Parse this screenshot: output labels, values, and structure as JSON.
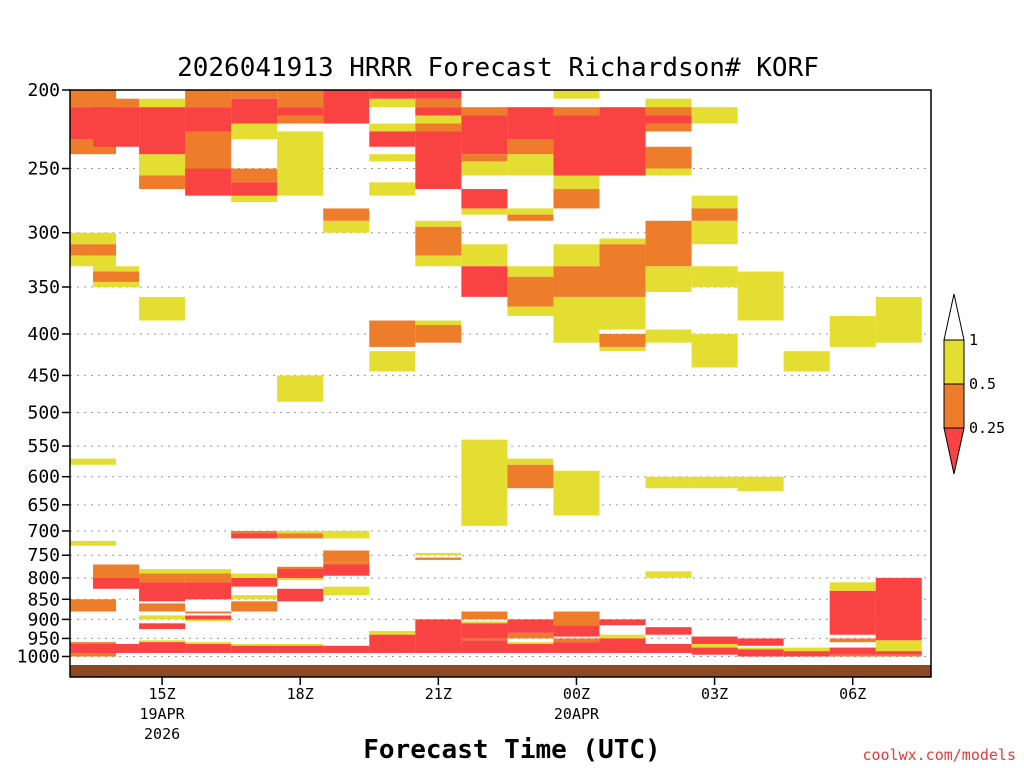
{
  "chart_data": {
    "type": "heatmap",
    "title": "2026041913 HRRR Forecast Richardson# KORF",
    "xlabel": "Forecast Time (UTC)",
    "credit": "coolwx.com/models",
    "y_axis": {
      "ticks": [
        200,
        250,
        300,
        350,
        400,
        450,
        500,
        550,
        600,
        650,
        700,
        750,
        800,
        850,
        900,
        950,
        1000
      ],
      "range": [
        200,
        1060
      ],
      "grid": "dotted"
    },
    "x_axis": {
      "range": [
        13,
        31.7
      ],
      "ticks": [
        {
          "hour": 15,
          "label": "15Z",
          "sub1": "19APR",
          "sub2": "2026"
        },
        {
          "hour": 18,
          "label": "18Z",
          "sub1": "",
          "sub2": ""
        },
        {
          "hour": 21,
          "label": "21Z",
          "sub1": "",
          "sub2": ""
        },
        {
          "hour": 24,
          "label": "00Z",
          "sub1": "20APR",
          "sub2": ""
        },
        {
          "hour": 27,
          "label": "03Z",
          "sub1": "",
          "sub2": ""
        },
        {
          "hour": 30,
          "label": "06Z",
          "sub1": "",
          "sub2": ""
        }
      ]
    },
    "legend": {
      "placement": "right",
      "levels": [
        "1",
        "0.5",
        "0.25"
      ],
      "colors": {
        "yellow": "#e4de32",
        "orange": "#ed7d2b",
        "red": "#f94343",
        "ground": "#8c4a22"
      }
    },
    "cells": [
      {
        "h": 13,
        "c": "y",
        "r": [
          [
            300,
            310
          ],
          [
            320,
            330
          ],
          [
            570,
            580
          ],
          [
            720,
            730
          ]
        ]
      },
      {
        "h": 13,
        "c": "o",
        "r": [
          [
            200,
            210
          ],
          [
            230,
            240
          ],
          [
            310,
            320
          ],
          [
            850,
            880
          ],
          [
            960,
            965
          ],
          [
            990,
            1000
          ]
        ]
      },
      {
        "h": 13,
        "c": "r",
        "r": [
          [
            210,
            230
          ],
          [
            965,
            990
          ]
        ]
      },
      {
        "h": 14,
        "c": "y",
        "r": [
          [
            330,
            335
          ],
          [
            340,
            350
          ],
          [
            980,
            985
          ]
        ]
      },
      {
        "h": 14,
        "c": "o",
        "r": [
          [
            205,
            210
          ],
          [
            335,
            345
          ],
          [
            770,
            800
          ]
        ]
      },
      {
        "h": 14,
        "c": "r",
        "r": [
          [
            210,
            235
          ],
          [
            800,
            825
          ],
          [
            965,
            990
          ]
        ]
      },
      {
        "h": 15,
        "c": "y",
        "r": [
          [
            205,
            210
          ],
          [
            240,
            255
          ],
          [
            360,
            385
          ],
          [
            780,
            790
          ],
          [
            840,
            850
          ],
          [
            890,
            900
          ],
          [
            955,
            960
          ]
        ]
      },
      {
        "h": 15,
        "c": "o",
        "r": [
          [
            255,
            265
          ],
          [
            790,
            810
          ],
          [
            860,
            875
          ],
          [
            875,
            880
          ]
        ]
      },
      {
        "h": 15,
        "c": "r",
        "r": [
          [
            210,
            240
          ],
          [
            810,
            855
          ],
          [
            910,
            925
          ],
          [
            960,
            990
          ]
        ]
      },
      {
        "h": 16,
        "c": "y",
        "r": [
          [
            250,
            260
          ],
          [
            780,
            790
          ],
          [
            900,
            905
          ],
          [
            960,
            965
          ]
        ]
      },
      {
        "h": 16,
        "c": "o",
        "r": [
          [
            200,
            210
          ],
          [
            225,
            250
          ],
          [
            790,
            810
          ],
          [
            880,
            885
          ]
        ]
      },
      {
        "h": 16,
        "c": "r",
        "r": [
          [
            210,
            225
          ],
          [
            250,
            270
          ],
          [
            810,
            850
          ],
          [
            890,
            900
          ],
          [
            965,
            990
          ]
        ]
      },
      {
        "h": 17,
        "c": "y",
        "r": [
          [
            220,
            230
          ],
          [
            270,
            275
          ],
          [
            790,
            800
          ],
          [
            840,
            850
          ],
          [
            965,
            970
          ]
        ]
      },
      {
        "h": 17,
        "c": "o",
        "r": [
          [
            200,
            205
          ],
          [
            250,
            260
          ],
          [
            700,
            705
          ],
          [
            855,
            880
          ]
        ]
      },
      {
        "h": 17,
        "c": "r",
        "r": [
          [
            205,
            220
          ],
          [
            260,
            270
          ],
          [
            705,
            715
          ],
          [
            800,
            820
          ],
          [
            970,
            990
          ]
        ]
      },
      {
        "h": 18,
        "c": "y",
        "r": [
          [
            225,
            270
          ],
          [
            450,
            485
          ],
          [
            700,
            705
          ],
          [
            800,
            805
          ],
          [
            965,
            970
          ]
        ]
      },
      {
        "h": 18,
        "c": "o",
        "r": [
          [
            200,
            210
          ],
          [
            215,
            220
          ],
          [
            705,
            715
          ],
          [
            775,
            785
          ]
        ]
      },
      {
        "h": 18,
        "c": "r",
        "r": [
          [
            210,
            215
          ],
          [
            780,
            800
          ],
          [
            825,
            855
          ],
          [
            970,
            990
          ]
        ]
      },
      {
        "h": 19,
        "c": "y",
        "r": [
          [
            290,
            300
          ],
          [
            700,
            715
          ],
          [
            820,
            840
          ]
        ]
      },
      {
        "h": 19,
        "c": "o",
        "r": [
          [
            280,
            290
          ],
          [
            740,
            765
          ],
          [
            765,
            770
          ]
        ]
      },
      {
        "h": 19,
        "c": "r",
        "r": [
          [
            200,
            220
          ],
          [
            770,
            795
          ],
          [
            970,
            990
          ]
        ]
      },
      {
        "h": 20,
        "c": "y",
        "r": [
          [
            205,
            210
          ],
          [
            220,
            225
          ],
          [
            240,
            245
          ],
          [
            260,
            270
          ],
          [
            420,
            445
          ],
          [
            930,
            940
          ]
        ]
      },
      {
        "h": 20,
        "c": "o",
        "r": [
          [
            385,
            415
          ]
        ]
      },
      {
        "h": 20,
        "c": "r",
        "r": [
          [
            200,
            205
          ],
          [
            225,
            235
          ],
          [
            940,
            990
          ]
        ]
      },
      {
        "h": 21,
        "c": "y",
        "r": [
          [
            215,
            220
          ],
          [
            290,
            295
          ],
          [
            320,
            330
          ],
          [
            385,
            390
          ],
          [
            745,
            750
          ]
        ]
      },
      {
        "h": 21,
        "c": "o",
        "r": [
          [
            205,
            210
          ],
          [
            220,
            225
          ],
          [
            295,
            320
          ],
          [
            390,
            410
          ],
          [
            755,
            760
          ]
        ]
      },
      {
        "h": 21,
        "c": "r",
        "r": [
          [
            200,
            205
          ],
          [
            210,
            215
          ],
          [
            225,
            265
          ],
          [
            900,
            990
          ]
        ]
      },
      {
        "h": 22,
        "c": "y",
        "r": [
          [
            245,
            255
          ],
          [
            280,
            285
          ],
          [
            310,
            330
          ],
          [
            540,
            690
          ],
          [
            905,
            910
          ]
        ]
      },
      {
        "h": 22,
        "c": "o",
        "r": [
          [
            210,
            215
          ],
          [
            240,
            245
          ],
          [
            880,
            900
          ],
          [
            950,
            955
          ]
        ]
      },
      {
        "h": 22,
        "c": "r",
        "r": [
          [
            215,
            240
          ],
          [
            265,
            280
          ],
          [
            330,
            360
          ],
          [
            910,
            950
          ],
          [
            955,
            990
          ]
        ]
      },
      {
        "h": 23,
        "c": "y",
        "r": [
          [
            240,
            255
          ],
          [
            280,
            285
          ],
          [
            330,
            340
          ],
          [
            370,
            380
          ],
          [
            570,
            580
          ],
          [
            960,
            965
          ]
        ]
      },
      {
        "h": 23,
        "c": "o",
        "r": [
          [
            230,
            240
          ],
          [
            285,
            290
          ],
          [
            340,
            370
          ],
          [
            580,
            620
          ],
          [
            935,
            950
          ]
        ]
      },
      {
        "h": 23,
        "c": "r",
        "r": [
          [
            210,
            230
          ],
          [
            900,
            935
          ],
          [
            965,
            990
          ]
        ]
      },
      {
        "h": 24,
        "c": "y",
        "r": [
          [
            200,
            205
          ],
          [
            255,
            270
          ],
          [
            310,
            330
          ],
          [
            360,
            410
          ],
          [
            590,
            670
          ]
        ]
      },
      {
        "h": 24,
        "c": "o",
        "r": [
          [
            210,
            215
          ],
          [
            265,
            280
          ],
          [
            330,
            360
          ],
          [
            880,
            915
          ],
          [
            950,
            960
          ]
        ]
      },
      {
        "h": 24,
        "c": "r",
        "r": [
          [
            215,
            255
          ],
          [
            915,
            945
          ],
          [
            960,
            990
          ]
        ]
      },
      {
        "h": 25,
        "c": "y",
        "r": [
          [
            305,
            310
          ],
          [
            360,
            395
          ],
          [
            415,
            420
          ],
          [
            940,
            950
          ]
        ]
      },
      {
        "h": 25,
        "c": "o",
        "r": [
          [
            310,
            360
          ],
          [
            400,
            415
          ]
        ]
      },
      {
        "h": 25,
        "c": "r",
        "r": [
          [
            210,
            255
          ],
          [
            900,
            915
          ],
          [
            950,
            990
          ]
        ]
      },
      {
        "h": 26,
        "c": "y",
        "r": [
          [
            205,
            210
          ],
          [
            250,
            255
          ],
          [
            330,
            355
          ],
          [
            395,
            410
          ],
          [
            600,
            620
          ],
          [
            785,
            800
          ]
        ]
      },
      {
        "h": 26,
        "c": "o",
        "r": [
          [
            210,
            215
          ],
          [
            220,
            225
          ],
          [
            235,
            250
          ],
          [
            290,
            330
          ]
        ]
      },
      {
        "h": 26,
        "c": "r",
        "r": [
          [
            215,
            220
          ],
          [
            920,
            940
          ],
          [
            965,
            990
          ]
        ]
      },
      {
        "h": 27,
        "c": "y",
        "r": [
          [
            210,
            220
          ],
          [
            270,
            280
          ],
          [
            290,
            310
          ],
          [
            330,
            350
          ],
          [
            400,
            440
          ],
          [
            600,
            620
          ],
          [
            965,
            975
          ]
        ]
      },
      {
        "h": 27,
        "c": "o",
        "r": [
          [
            280,
            290
          ]
        ]
      },
      {
        "h": 27,
        "c": "r",
        "r": [
          [
            945,
            965
          ],
          [
            975,
            995
          ]
        ]
      },
      {
        "h": 28,
        "c": "y",
        "r": [
          [
            335,
            385
          ],
          [
            600,
            625
          ],
          [
            975,
            980
          ]
        ]
      },
      {
        "h": 28,
        "c": "r",
        "r": [
          [
            950,
            970
          ],
          [
            980,
            1000
          ]
        ]
      },
      {
        "h": 29,
        "c": "y",
        "r": [
          [
            420,
            445
          ],
          [
            975,
            985
          ]
        ]
      },
      {
        "h": 29,
        "c": "r",
        "r": [
          [
            985,
            1000
          ]
        ]
      },
      {
        "h": 30,
        "c": "y",
        "r": [
          [
            380,
            415
          ],
          [
            810,
            830
          ]
        ]
      },
      {
        "h": 30,
        "c": "o",
        "r": [
          [
            950,
            960
          ],
          [
            995,
            1000
          ]
        ]
      },
      {
        "h": 30,
        "c": "r",
        "r": [
          [
            830,
            940
          ],
          [
            975,
            995
          ]
        ]
      },
      {
        "h": 31,
        "c": "y",
        "r": [
          [
            360,
            410
          ],
          [
            955,
            985
          ]
        ]
      },
      {
        "h": 31,
        "c": "o",
        "r": [
          [
            995,
            1000
          ]
        ]
      },
      {
        "h": 31,
        "c": "r",
        "r": [
          [
            800,
            955
          ],
          [
            985,
            995
          ]
        ]
      }
    ]
  }
}
